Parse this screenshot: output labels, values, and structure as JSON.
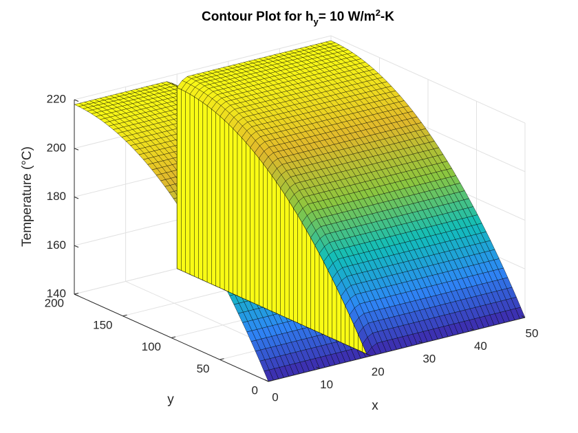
{
  "chart_data": {
    "type": "surface",
    "title_parts": {
      "prefix": "Contour Plot for h",
      "subscript": "y",
      "middle": "= 10 W/m",
      "superscript": "2",
      "suffix": "-K"
    },
    "xlabel": "x",
    "ylabel": "y",
    "zlabel": "Temperature (°C)",
    "xlim": [
      0,
      50
    ],
    "ylim": [
      0,
      200
    ],
    "zlim": [
      140,
      220
    ],
    "xticks": [
      "0",
      "10",
      "20",
      "30",
      "40",
      "50"
    ],
    "yticks": [
      "0",
      "50",
      "100",
      "150",
      "200"
    ],
    "zticks": [
      "140",
      "160",
      "180",
      "200",
      "220"
    ],
    "grid": true,
    "colormap": [
      "#3e26a8",
      "#2e87f7",
      "#12beb9",
      "#8cc63f",
      "#e1b82b",
      "#f9fb15"
    ],
    "surface": {
      "x_groove": 20,
      "peak_temperature": 218,
      "min_temperature": 140,
      "profile_along_y": "parabolic, maximum at y = 200, minimum at y = 0"
    }
  }
}
